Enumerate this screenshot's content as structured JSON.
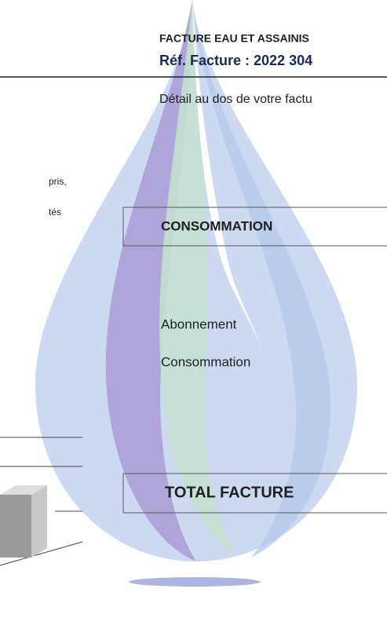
{
  "header": {
    "title": "FACTURE EAU ET ASSAINIS",
    "reference": "Réf. Facture : 2022 304"
  },
  "detail_note": "Détail au dos de votre factu",
  "left_fragments": [
    "pris,",
    "tés"
  ],
  "sections": {
    "consommation": {
      "title": "CONSOMMATION",
      "items": [
        "Abonnement",
        "Consommation"
      ]
    },
    "total": {
      "title": "TOTAL FACTURE"
    }
  }
}
